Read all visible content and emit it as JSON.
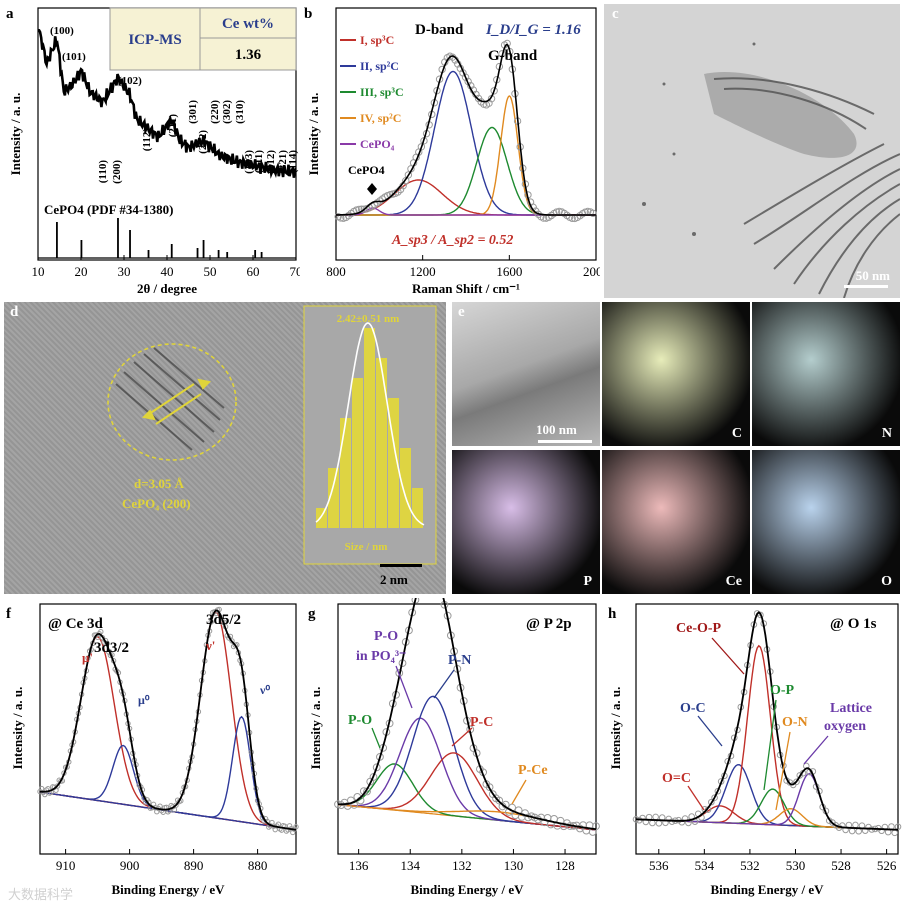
{
  "panels": {
    "a": {
      "letter": "a"
    },
    "b": {
      "letter": "b"
    },
    "c": {
      "letter": "c"
    },
    "d": {
      "letter": "d"
    },
    "e": {
      "letter": "e"
    },
    "f": {
      "letter": "f"
    },
    "g": {
      "letter": "g"
    },
    "h": {
      "letter": "h"
    }
  },
  "chart_data": [
    {
      "id": "a",
      "type": "line",
      "xlabel": "2θ / degree",
      "ylabel": "Intensity / a. u.",
      "xlim": [
        10,
        70
      ],
      "xticks": [
        10,
        20,
        30,
        40,
        50,
        60,
        70
      ],
      "table": {
        "header_left": "ICP-MS",
        "header_right": "Ce wt%",
        "value": "1.36"
      },
      "reference": "CePO4 (PDF #34-1380)",
      "reference_sticks": [
        {
          "x": 14.4,
          "h": 0.9
        },
        {
          "x": 20.1,
          "h": 0.45
        },
        {
          "x": 28.6,
          "h": 1.0
        },
        {
          "x": 31.4,
          "h": 0.7
        },
        {
          "x": 35.7,
          "h": 0.2
        },
        {
          "x": 41.1,
          "h": 0.35
        },
        {
          "x": 47.1,
          "h": 0.25
        },
        {
          "x": 48.5,
          "h": 0.45
        },
        {
          "x": 52.0,
          "h": 0.2
        },
        {
          "x": 54.0,
          "h": 0.15
        },
        {
          "x": 60.5,
          "h": 0.2
        },
        {
          "x": 62.0,
          "h": 0.15
        }
      ],
      "peak_labels": [
        "(100)",
        "(101)",
        "(102)",
        "(110)",
        "(200)",
        "(112)",
        "(211)",
        "(301)",
        "(212)",
        "(220)",
        "(302)",
        "(310)",
        "(103)",
        "(311)",
        "(312)",
        "(321)",
        "(114)"
      ],
      "pattern": [
        [
          10,
          1.0
        ],
        [
          12,
          0.78
        ],
        [
          14.4,
          0.92
        ],
        [
          16,
          0.62
        ],
        [
          18,
          0.66
        ],
        [
          20.1,
          0.74
        ],
        [
          22,
          0.62
        ],
        [
          25,
          0.56
        ],
        [
          28.6,
          0.7
        ],
        [
          31.4,
          0.6
        ],
        [
          33,
          0.46
        ],
        [
          36,
          0.4
        ],
        [
          38,
          0.36
        ],
        [
          41.1,
          0.46
        ],
        [
          43,
          0.34
        ],
        [
          45,
          0.3
        ],
        [
          48.5,
          0.34
        ],
        [
          52,
          0.26
        ],
        [
          56,
          0.22
        ],
        [
          60,
          0.2
        ],
        [
          65,
          0.17
        ],
        [
          70,
          0.16
        ]
      ]
    },
    {
      "id": "b",
      "type": "line",
      "xlabel": "Raman Shift / cm⁻¹",
      "ylabel": "Intensity / a. u.",
      "xlim": [
        800,
        2000
      ],
      "xticks": [
        800,
        1200,
        1600,
        2000
      ],
      "bands": {
        "d": "D-band",
        "g": "G-band",
        "ratio": "I_D/I_G = 1.16",
        "area_ratio": "A_sp3 / A_sp2 = 0.52",
        "cepo4": "CePO4"
      },
      "series": [
        {
          "name": "I, sp³C",
          "color": "#c0302a",
          "center": 1180,
          "height": 0.2,
          "width": 110
        },
        {
          "name": "II, sp²C",
          "color": "#2e3a9a",
          "center": 1340,
          "height": 0.82,
          "width": 85
        },
        {
          "name": "III, sp³C",
          "color": "#1e8a30",
          "center": 1520,
          "height": 0.5,
          "width": 70
        },
        {
          "name": "IV, sp²C",
          "color": "#e08a20",
          "center": 1600,
          "height": 0.68,
          "width": 40
        },
        {
          "name": "CePO₄",
          "color": "#8a3aa8",
          "center": 970,
          "height": 0.04,
          "width": 30
        }
      ]
    },
    {
      "id": "f",
      "type": "line",
      "xlabel": "Binding Energy / eV",
      "ylabel": "Intensity / a. u.",
      "xlim": [
        914,
        874
      ],
      "xticks": [
        910,
        900,
        890,
        880
      ],
      "tag": "@ Ce 3d",
      "labels": {
        "d32": "3d3/2",
        "d52": "3d5/2",
        "mu_prime": "μ'",
        "mu0": "μ⁰",
        "nu_prime": "ν'",
        "nu0": "ν⁰"
      },
      "series": [
        {
          "name": "μ'",
          "color": "#c0302a",
          "center": 905,
          "height": 0.78,
          "width": 2.6
        },
        {
          "name": "μ⁰",
          "color": "#2e3a9a",
          "center": 901,
          "height": 0.28,
          "width": 1.6
        },
        {
          "name": "ν'",
          "color": "#c0302a",
          "center": 886.5,
          "height": 0.98,
          "width": 2.4
        },
        {
          "name": "ν⁰",
          "color": "#2e3a9a",
          "center": 882.5,
          "height": 0.5,
          "width": 1.4
        }
      ]
    },
    {
      "id": "g",
      "type": "line",
      "xlabel": "Binding Energy / eV",
      "ylabel": "Intensity / a. u.",
      "xlim": [
        136.8,
        126.8
      ],
      "xticks": [
        136,
        134,
        132,
        130,
        128
      ],
      "tag": "@ P 2p",
      "series": [
        {
          "name": "P-O",
          "color": "#1e8a30",
          "center": 134.6,
          "height": 0.22,
          "width": 0.7
        },
        {
          "name": "P-O in PO₄³⁻",
          "color": "#6a3aa8",
          "center": 133.6,
          "height": 0.45,
          "width": 0.8
        },
        {
          "name": "P-N",
          "color": "#2e3a9a",
          "center": 133.1,
          "height": 0.56,
          "width": 0.8
        },
        {
          "name": "P-C",
          "color": "#c0302a",
          "center": 132.3,
          "height": 0.3,
          "width": 0.9
        },
        {
          "name": "P-Ce",
          "color": "#e08a20",
          "center": 130.5,
          "height": 0.04,
          "width": 1.6
        }
      ],
      "annotations": {
        "po": "P-O",
        "po4": "P-O",
        "po4b": "in PO₄³⁻",
        "pn": "P-N",
        "pc": "P-C",
        "pce": "P-Ce"
      }
    },
    {
      "id": "h",
      "type": "line",
      "xlabel": "Binding Energy / eV",
      "ylabel": "Intensity / a. u.",
      "xlim": [
        537,
        525.5
      ],
      "xticks": [
        536,
        534,
        532,
        530,
        528,
        526
      ],
      "tag": "@ O 1s",
      "series": [
        {
          "name": "O=C",
          "color": "#c0302a",
          "center": 533.3,
          "height": 0.08,
          "width": 0.6
        },
        {
          "name": "O-C",
          "color": "#2e3a9a",
          "center": 532.5,
          "height": 0.28,
          "width": 0.55
        },
        {
          "name": "Ce-O-P",
          "color": "#c0302a",
          "center": 531.6,
          "height": 0.85,
          "width": 0.5
        },
        {
          "name": "O-P",
          "color": "#1e8a30",
          "center": 531.0,
          "height": 0.17,
          "width": 0.5
        },
        {
          "name": "O-N",
          "color": "#e08a20",
          "center": 530.2,
          "height": 0.08,
          "width": 0.5
        },
        {
          "name": "Lattice oxygen",
          "color": "#6a3aa8",
          "center": 529.4,
          "height": 0.25,
          "width": 0.45
        }
      ],
      "annotations": {
        "oc_double": "O=C",
        "oc": "O-C",
        "ceop": "Ce-O-P",
        "op": "O-P",
        "on": "O-N",
        "lattice1": "Lattice",
        "lattice2": "oxygen"
      }
    }
  ],
  "microscopy": {
    "c_scale": "50 nm",
    "d_scale": "2 nm",
    "d_lattice1": "d=3.05 Å",
    "d_lattice2": "CePO₄ (200)",
    "d_hist_title": "2.42±0.51 nm",
    "d_hist_xlabel": "Size / nm",
    "d_hist_bins": [
      0.1,
      0.3,
      0.55,
      0.75,
      1.0,
      0.85,
      0.65,
      0.4,
      0.2
    ],
    "e_scale": "100 nm",
    "e_maps": [
      "C",
      "N",
      "P",
      "Ce",
      "O"
    ],
    "e_map_colors": [
      "#b8c830",
      "#1e6a6a",
      "#8a3ab8",
      "#c83030",
      "#2e7ac8"
    ]
  },
  "watermark": "大数据科学"
}
